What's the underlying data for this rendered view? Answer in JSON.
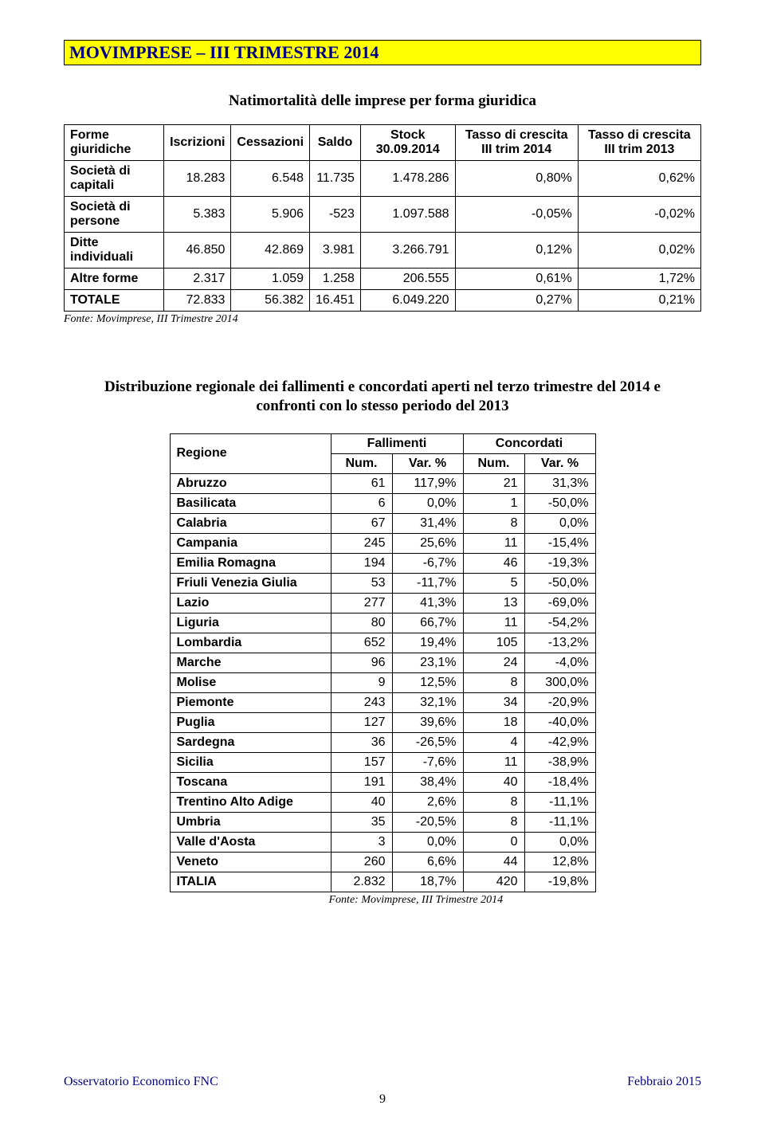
{
  "banner": {
    "title": "MOVIMPRESE – III TRIMESTRE 2014"
  },
  "section1": {
    "title": "Natimortalità delle imprese per forma giuridica",
    "headers": {
      "forme": "Forme giuridiche",
      "iscr": "Iscrizioni",
      "cess": "Cessazioni",
      "saldo": "Saldo",
      "stock": "Stock 30.09.2014",
      "t2014": "Tasso di crescita III trim 2014",
      "t2013": "Tasso di crescita III trim 2013"
    },
    "rows": [
      {
        "label": "Società di capitali",
        "iscr": "18.283",
        "cess": "6.548",
        "saldo": "11.735",
        "stock": "1.478.286",
        "t14": "0,80%",
        "t13": "0,62%"
      },
      {
        "label": "Società di persone",
        "iscr": "5.383",
        "cess": "5.906",
        "saldo": "-523",
        "stock": "1.097.588",
        "t14": "-0,05%",
        "t13": "-0,02%"
      },
      {
        "label": "Ditte individuali",
        "iscr": "46.850",
        "cess": "42.869",
        "saldo": "3.981",
        "stock": "3.266.791",
        "t14": "0,12%",
        "t13": "0,02%"
      },
      {
        "label": "Altre forme",
        "iscr": "2.317",
        "cess": "1.059",
        "saldo": "1.258",
        "stock": "206.555",
        "t14": "0,61%",
        "t13": "1,72%"
      },
      {
        "label": "TOTALE",
        "iscr": "72.833",
        "cess": "56.382",
        "saldo": "16.451",
        "stock": "6.049.220",
        "t14": "0,27%",
        "t13": "0,21%"
      }
    ],
    "source": "Fonte: Movimprese, III Trimestre 2014"
  },
  "section2": {
    "title": "Distribuzione regionale dei fallimenti e concordati aperti nel terzo trimestre del 2014 e confronti con lo stesso periodo del 2013",
    "headers": {
      "regione": "Regione",
      "fall": "Fallimenti",
      "conc": "Concordati",
      "num": "Num.",
      "var": "Var. %"
    },
    "rows": [
      {
        "r": "Abruzzo",
        "fn": "61",
        "fv": "117,9%",
        "cn": "21",
        "cv": "31,3%"
      },
      {
        "r": "Basilicata",
        "fn": "6",
        "fv": "0,0%",
        "cn": "1",
        "cv": "-50,0%"
      },
      {
        "r": "Calabria",
        "fn": "67",
        "fv": "31,4%",
        "cn": "8",
        "cv": "0,0%"
      },
      {
        "r": "Campania",
        "fn": "245",
        "fv": "25,6%",
        "cn": "11",
        "cv": "-15,4%"
      },
      {
        "r": "Emilia Romagna",
        "fn": "194",
        "fv": "-6,7%",
        "cn": "46",
        "cv": "-19,3%"
      },
      {
        "r": "Friuli Venezia Giulia",
        "fn": "53",
        "fv": "-11,7%",
        "cn": "5",
        "cv": "-50,0%"
      },
      {
        "r": "Lazio",
        "fn": "277",
        "fv": "41,3%",
        "cn": "13",
        "cv": "-69,0%"
      },
      {
        "r": "Liguria",
        "fn": "80",
        "fv": "66,7%",
        "cn": "11",
        "cv": "-54,2%"
      },
      {
        "r": "Lombardia",
        "fn": "652",
        "fv": "19,4%",
        "cn": "105",
        "cv": "-13,2%"
      },
      {
        "r": "Marche",
        "fn": "96",
        "fv": "23,1%",
        "cn": "24",
        "cv": "-4,0%"
      },
      {
        "r": "Molise",
        "fn": "9",
        "fv": "12,5%",
        "cn": "8",
        "cv": "300,0%"
      },
      {
        "r": "Piemonte",
        "fn": "243",
        "fv": "32,1%",
        "cn": "34",
        "cv": "-20,9%"
      },
      {
        "r": "Puglia",
        "fn": "127",
        "fv": "39,6%",
        "cn": "18",
        "cv": "-40,0%"
      },
      {
        "r": "Sardegna",
        "fn": "36",
        "fv": "-26,5%",
        "cn": "4",
        "cv": "-42,9%"
      },
      {
        "r": "Sicilia",
        "fn": "157",
        "fv": "-7,6%",
        "cn": "11",
        "cv": "-38,9%"
      },
      {
        "r": "Toscana",
        "fn": "191",
        "fv": "38,4%",
        "cn": "40",
        "cv": "-18,4%"
      },
      {
        "r": "Trentino Alto Adige",
        "fn": "40",
        "fv": "2,6%",
        "cn": "8",
        "cv": "-11,1%"
      },
      {
        "r": "Umbria",
        "fn": "35",
        "fv": "-20,5%",
        "cn": "8",
        "cv": "-11,1%"
      },
      {
        "r": "Valle d'Aosta",
        "fn": "3",
        "fv": "0,0%",
        "cn": "0",
        "cv": "0,0%"
      },
      {
        "r": "Veneto",
        "fn": "260",
        "fv": "6,6%",
        "cn": "44",
        "cv": "12,8%"
      },
      {
        "r": "ITALIA",
        "fn": "2.832",
        "fv": "18,7%",
        "cn": "420",
        "cv": "-19,8%"
      }
    ],
    "source": "Fonte: Movimprese, III Trimestre 2014"
  },
  "footer": {
    "left": "Osservatorio Economico FNC",
    "right": "Febbraio 2015",
    "page": "9"
  }
}
